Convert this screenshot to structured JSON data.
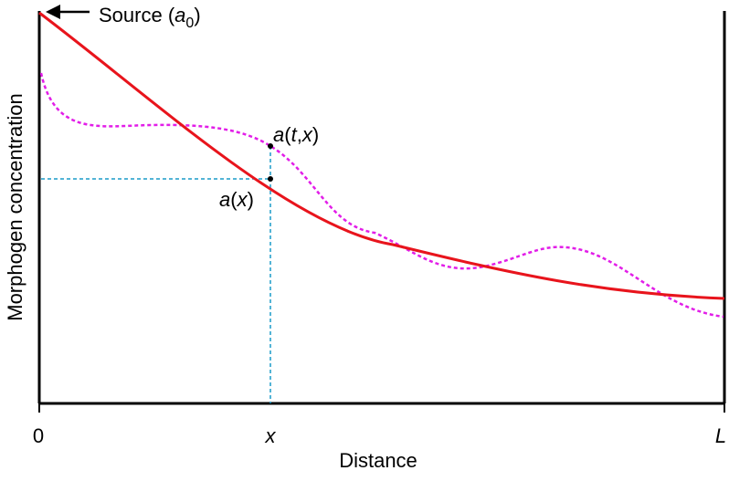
{
  "diagram": {
    "source_label": {
      "prefix": "Source (",
      "symbol": "a",
      "subscript": "0",
      "suffix": ")"
    },
    "ylabel": "Morphogen concentration",
    "xlabel": "Distance",
    "x_ticks": {
      "origin": "0",
      "position": "x",
      "end": "L"
    },
    "point_labels": {
      "transient": {
        "symbol": "a",
        "open": "(",
        "t": "t",
        "comma": ",",
        "x": "x",
        "close": ")"
      },
      "steady": {
        "symbol": "a",
        "open": "(",
        "x": "x",
        "close": ")"
      }
    },
    "colors": {
      "steady_curve": "#e8141c",
      "transient_curve": "#e21ee8",
      "guide_lines": "#1a9bc9",
      "axes": "#000000"
    }
  }
}
